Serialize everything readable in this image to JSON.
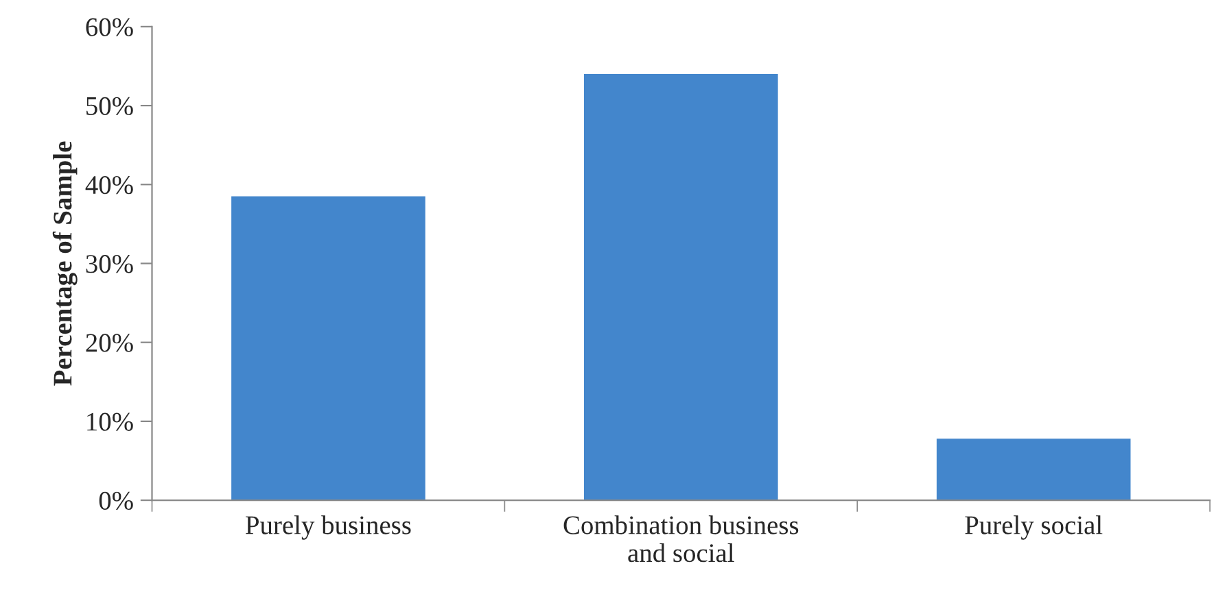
{
  "chart_data": {
    "type": "bar",
    "ylabel": "Percentage of Sample",
    "categories": [
      "Purely business",
      "Combination business\nand social",
      "Purely social"
    ],
    "values": [
      38.5,
      54,
      7.8
    ],
    "color": "#4386cc",
    "ylim": [
      0,
      60
    ],
    "yticks": [
      {
        "value": 0,
        "label": "0%"
      },
      {
        "value": 10,
        "label": "10%"
      },
      {
        "value": 20,
        "label": "20%"
      },
      {
        "value": 30,
        "label": "30%"
      },
      {
        "value": 40,
        "label": "40%"
      },
      {
        "value": 50,
        "label": "50%"
      },
      {
        "value": 60,
        "label": "60%"
      }
    ],
    "grid": false,
    "legend": false
  }
}
